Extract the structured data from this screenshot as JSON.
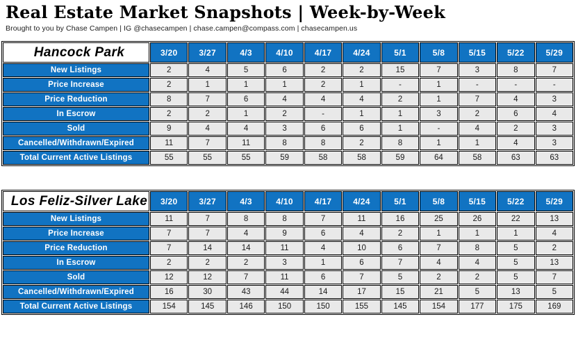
{
  "header": {
    "title": "Real Estate Market Snapshots | Week-by-Week",
    "subtitle": "Brought to you by Chase Campen | IG @chasecampen | chase.campen@compass.com | chasecampen.us"
  },
  "colors": {
    "accent_blue": "#1173C2",
    "cell_gray": "#E9E9E9",
    "border_black": "#000000"
  },
  "dates": [
    "3/20",
    "3/27",
    "4/3",
    "4/10",
    "4/17",
    "4/24",
    "5/1",
    "5/8",
    "5/15",
    "5/22",
    "5/29"
  ],
  "tables": [
    {
      "name": "Hancock Park",
      "rows": [
        {
          "label": "New Listings",
          "values": [
            "2",
            "4",
            "5",
            "6",
            "2",
            "2",
            "15",
            "7",
            "3",
            "8",
            "7"
          ]
        },
        {
          "label": "Price Increase",
          "values": [
            "2",
            "1",
            "1",
            "1",
            "2",
            "1",
            "-",
            "1",
            "-",
            "-",
            "-"
          ]
        },
        {
          "label": "Price Reduction",
          "values": [
            "8",
            "7",
            "6",
            "4",
            "4",
            "4",
            "2",
            "1",
            "7",
            "4",
            "3"
          ]
        },
        {
          "label": "In Escrow",
          "values": [
            "2",
            "2",
            "1",
            "2",
            "-",
            "1",
            "1",
            "3",
            "2",
            "6",
            "4"
          ]
        },
        {
          "label": "Sold",
          "values": [
            "9",
            "4",
            "4",
            "3",
            "6",
            "6",
            "1",
            "-",
            "4",
            "2",
            "3"
          ]
        },
        {
          "label": "Cancelled/Withdrawn/Expired",
          "values": [
            "11",
            "7",
            "11",
            "8",
            "8",
            "2",
            "8",
            "1",
            "1",
            "4",
            "3"
          ]
        },
        {
          "label": "Total Current Active Listings",
          "values": [
            "55",
            "55",
            "55",
            "59",
            "58",
            "58",
            "59",
            "64",
            "58",
            "63",
            "63"
          ]
        }
      ]
    },
    {
      "name": "Los Feliz-Silver Lake",
      "rows": [
        {
          "label": "New Listings",
          "values": [
            "11",
            "7",
            "8",
            "8",
            "7",
            "11",
            "16",
            "25",
            "26",
            "22",
            "13"
          ]
        },
        {
          "label": "Price Increase",
          "values": [
            "7",
            "7",
            "4",
            "9",
            "6",
            "4",
            "2",
            "1",
            "1",
            "1",
            "4"
          ]
        },
        {
          "label": "Price Reduction",
          "values": [
            "7",
            "14",
            "14",
            "11",
            "4",
            "10",
            "6",
            "7",
            "8",
            "5",
            "2"
          ]
        },
        {
          "label": "In Escrow",
          "values": [
            "2",
            "2",
            "2",
            "3",
            "1",
            "6",
            "7",
            "4",
            "4",
            "5",
            "13"
          ]
        },
        {
          "label": "Sold",
          "values": [
            "12",
            "12",
            "7",
            "11",
            "6",
            "7",
            "5",
            "2",
            "2",
            "5",
            "7"
          ]
        },
        {
          "label": "Cancelled/Withdrawn/Expired",
          "values": [
            "16",
            "30",
            "43",
            "44",
            "14",
            "17",
            "15",
            "21",
            "5",
            "13",
            "5"
          ]
        },
        {
          "label": "Total Current Active Listings",
          "values": [
            "154",
            "145",
            "146",
            "150",
            "150",
            "155",
            "145",
            "154",
            "177",
            "175",
            "169"
          ]
        }
      ]
    }
  ]
}
